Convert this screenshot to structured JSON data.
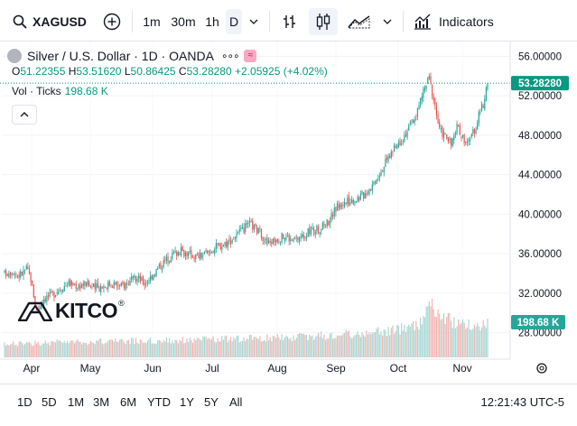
{
  "toolbar": {
    "symbol": "XAGUSD",
    "intervals": [
      "1m",
      "30m",
      "1h",
      "D"
    ],
    "active_interval": "D",
    "indicators_label": "Indicators"
  },
  "legend": {
    "title": "Silver / U.S. Dollar · 1D · OANDA",
    "dots": "∘∘∘",
    "open_label": "O",
    "open": "51.22355",
    "high_label": "H",
    "high": "53.51620",
    "low_label": "L",
    "low": "50.86425",
    "close_label": "C",
    "close": "53.28280",
    "change": "+2.05925 (+4.02%)",
    "volume_label": "Vol · Ticks",
    "volume": "198.68 K"
  },
  "watermark": {
    "text": "KITCO",
    "mark": "®"
  },
  "ranges": [
    "1D",
    "5D",
    "1M",
    "3M",
    "6M",
    "YTD",
    "1Y",
    "5Y",
    "All"
  ],
  "clock": "12:21:43 UTC-5",
  "colors": {
    "up": "#26a69a",
    "down": "#ef5350",
    "vol_up": "#a7d7d2",
    "vol_down": "#f4b3b1",
    "price_label": "#089981"
  },
  "chart_data": {
    "type": "candlestick",
    "x_tick_labels": [
      "Apr",
      "May",
      "Jun",
      "Jul",
      "Aug",
      "Sep",
      "Oct",
      "Nov"
    ],
    "y_tick_labels": [
      "56.00000",
      "52.00000",
      "48.00000",
      "44.00000",
      "40.00000",
      "36.00000",
      "32.00000",
      "28.00000"
    ],
    "ylim": [
      25.5,
      57.5
    ],
    "last_price_label": "53.28280",
    "last_price": 53.2828,
    "last_volume_label": "198.68 K",
    "close_points": [
      [
        0,
        34.0
      ],
      [
        5,
        34.3
      ],
      [
        10,
        33.8
      ],
      [
        15,
        34.5
      ],
      [
        18,
        33.5
      ],
      [
        22,
        30.2
      ],
      [
        27,
        31.5
      ],
      [
        32,
        31.8
      ],
      [
        38,
        32.5
      ],
      [
        44,
        33.0
      ],
      [
        50,
        32.8
      ],
      [
        56,
        33.0
      ],
      [
        62,
        32.5
      ],
      [
        68,
        32.8
      ],
      [
        74,
        33.0
      ],
      [
        80,
        32.7
      ],
      [
        86,
        33.2
      ],
      [
        92,
        33.5
      ],
      [
        96,
        33.0
      ],
      [
        102,
        34.0
      ],
      [
        108,
        35.0
      ],
      [
        114,
        35.8
      ],
      [
        120,
        36.3
      ],
      [
        126,
        36.0
      ],
      [
        132,
        35.7
      ],
      [
        138,
        36.0
      ],
      [
        144,
        36.6
      ],
      [
        150,
        37.0
      ],
      [
        156,
        37.5
      ],
      [
        162,
        38.2
      ],
      [
        168,
        39.0
      ],
      [
        172,
        38.5
      ],
      [
        176,
        38.0
      ],
      [
        180,
        37.0
      ],
      [
        186,
        37.5
      ],
      [
        192,
        37.8
      ],
      [
        198,
        37.3
      ],
      [
        204,
        37.8
      ],
      [
        210,
        38.3
      ],
      [
        216,
        38.5
      ],
      [
        222,
        39.3
      ],
      [
        228,
        40.8
      ],
      [
        234,
        41.2
      ],
      [
        240,
        41.5
      ],
      [
        246,
        42.0
      ],
      [
        252,
        43.0
      ],
      [
        258,
        44.5
      ],
      [
        264,
        46.0
      ],
      [
        270,
        47.2
      ],
      [
        276,
        48.5
      ],
      [
        282,
        50.0
      ],
      [
        287,
        52.5
      ],
      [
        291,
        53.8
      ],
      [
        295,
        51.0
      ],
      [
        298,
        48.5
      ],
      [
        302,
        48.0
      ],
      [
        306,
        47.0
      ],
      [
        310,
        48.8
      ],
      [
        314,
        47.8
      ],
      [
        318,
        47.2
      ],
      [
        322,
        48.5
      ],
      [
        326,
        50.5
      ],
      [
        329,
        51.5
      ],
      [
        331,
        53.3
      ]
    ],
    "volume_points": [
      [
        0,
        1.6
      ],
      [
        40,
        1.9
      ],
      [
        80,
        2.0
      ],
      [
        120,
        2.1
      ],
      [
        160,
        2.3
      ],
      [
        200,
        2.5
      ],
      [
        240,
        2.9
      ],
      [
        270,
        3.4
      ],
      [
        285,
        4.2
      ],
      [
        290,
        6.5
      ],
      [
        300,
        5.0
      ],
      [
        315,
        4.0
      ],
      [
        331,
        4.1
      ]
    ]
  }
}
